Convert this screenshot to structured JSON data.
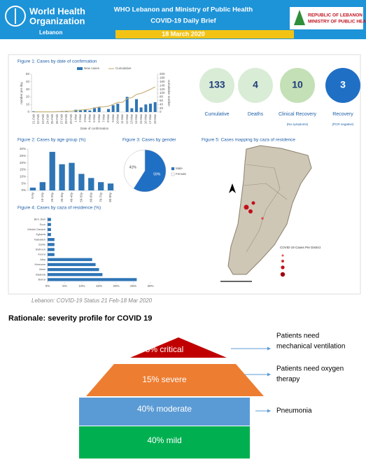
{
  "header": {
    "who_line1": "World Health",
    "who_line2": "Organization",
    "who_country": "Lebanon",
    "title": "WHO Lebanon and Ministry of Public Health",
    "subtitle": "COVID-19 Daily Brief",
    "date": "18 March 2020",
    "moph_line1": "REPUBLIC OF LEBANON",
    "moph_line2": "MINISTRY OF PUBLIC HEALTH"
  },
  "stats": [
    {
      "value": 133,
      "label": "Cumulative"
    },
    {
      "value": 4,
      "label": "Deaths"
    },
    {
      "value": 10,
      "label": "Clinical Recovery",
      "note": "(No symptoms)"
    },
    {
      "value": 3,
      "label": "Recovery",
      "note": "(PCR negative)"
    }
  ],
  "chart_data": [
    {
      "type": "bar",
      "title": "Figure 1: Cases by date of confirmation",
      "x_label": "Date of confirmation",
      "y_label": "number per day",
      "y2_label": "cumulative number",
      "categories": [
        "21-Feb",
        "22-Feb",
        "23-Feb",
        "24-Feb",
        "25-Feb",
        "26-Feb",
        "27-Feb",
        "28-Feb",
        "29-Feb",
        "1-Mar",
        "2-Mar",
        "3-Mar",
        "4-Mar",
        "5-Mar",
        "6-Mar",
        "7-Mar",
        "8-Mar",
        "9-Mar",
        "10-Mar",
        "11-Mar",
        "12-Mar",
        "13-Mar",
        "14-Mar",
        "15-Mar",
        "16-Mar",
        "17-Mar",
        "18-Mar"
      ],
      "series": [
        {
          "name": "New cases",
          "color": "#2e75b6",
          "values": [
            1,
            0,
            0,
            0,
            0,
            1,
            1,
            1,
            0,
            3,
            3,
            3,
            2,
            6,
            6,
            0,
            4,
            9,
            11,
            0,
            20,
            5,
            17,
            6,
            10,
            11,
            13
          ]
        },
        {
          "name": "Cumulative",
          "color": "#c8b27a",
          "axis": "y2",
          "values": [
            1,
            1,
            1,
            1,
            1,
            2,
            3,
            4,
            4,
            7,
            10,
            13,
            15,
            21,
            27,
            27,
            31,
            40,
            51,
            51,
            71,
            76,
            93,
            99,
            109,
            120,
            133
          ]
        }
      ],
      "ylim": [
        0,
        50
      ],
      "yticks": [
        0,
        10,
        20,
        30,
        40,
        50
      ],
      "y2lim": [
        0,
        200
      ],
      "y2ticks": [
        0,
        20,
        40,
        60,
        80,
        100,
        120,
        140,
        160,
        180,
        200
      ]
    },
    {
      "type": "bar",
      "title": "Figure 2: Cases by age group (%)",
      "color": "#2e75b6",
      "categories": [
        "0-9y",
        "10-19y",
        "20-29y",
        "30-39y",
        "40-49y",
        "50-59y",
        "60-69y",
        "70-79y",
        "80-89y"
      ],
      "values": [
        2,
        6,
        28,
        19,
        20,
        12,
        9,
        6,
        5
      ],
      "ylim": [
        0,
        30
      ],
      "yticks": [
        {
          "value": 0,
          "label": "0%"
        },
        {
          "value": 5,
          "label": "5%"
        },
        {
          "value": 10,
          "label": "10%"
        },
        {
          "value": 15,
          "label": "15%"
        },
        {
          "value": 20,
          "label": "20%"
        },
        {
          "value": 25,
          "label": "25%"
        },
        {
          "value": 30,
          "label": "30%"
        }
      ]
    },
    {
      "type": "pie",
      "title": "Figure 3: Cases by gender",
      "categories": [
        "Male",
        "Female"
      ],
      "values": [
        59,
        41
      ],
      "value_labels": [
        "59%",
        "41%"
      ],
      "colors": [
        "#1f6fc5",
        "#ffffff"
      ]
    },
    {
      "type": "hbar",
      "title": "Figure 4: Cases by caza of residence (%)",
      "color": "#2e75b6",
      "categories": [
        "Bint Jbeil",
        "Sour",
        "Minieh Danieh",
        "Zgharta",
        "Nabatieh",
        "Zahle",
        "Batroun",
        "Koura",
        "Aley",
        "Kesrwan",
        "Matn",
        "Baabda",
        "Beirut"
      ],
      "values": [
        1,
        1,
        1,
        1,
        2,
        2,
        2,
        2,
        13,
        14,
        15,
        16,
        26
      ],
      "xlim": [
        0,
        30
      ],
      "xticks": [
        {
          "value": 0,
          "label": "0%"
        },
        {
          "value": 5,
          "label": "5%"
        },
        {
          "value": 10,
          "label": "10%"
        },
        {
          "value": 15,
          "label": "15%"
        },
        {
          "value": 20,
          "label": "20%"
        },
        {
          "value": 25,
          "label": "25%"
        },
        {
          "value": 30,
          "label": "30%"
        }
      ]
    }
  ],
  "map": {
    "title": "Figure 5: Cases mapping by caza of residence",
    "legend_title": "COVID-19 Cases Per District"
  },
  "caption": "Lebanon: COVID-19 Status 21 Feb-18 Mar 2020",
  "rationale": {
    "title": "Rationale: severity profile for COVID 19",
    "levels": [
      {
        "label": "5% critical",
        "note": [
          "Patients need",
          "mechanical ventilation"
        ]
      },
      {
        "label": "15% severe",
        "note": [
          "Patients need oxygen",
          "therapy"
        ]
      },
      {
        "label": "40% moderate",
        "note": [
          "Pneumonia"
        ]
      },
      {
        "label": "40% mild"
      }
    ]
  }
}
